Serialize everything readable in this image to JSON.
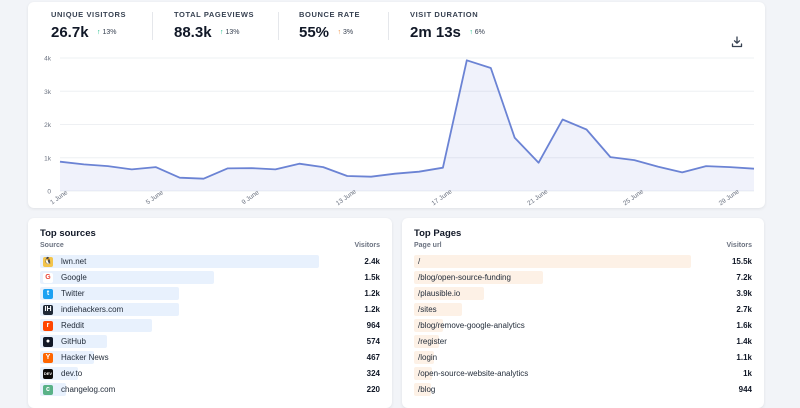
{
  "stats": [
    {
      "label": "UNIQUE VISITORS",
      "value": "26.7k",
      "change": "13%",
      "arrow": "↑",
      "color": "#10b981"
    },
    {
      "label": "TOTAL PAGEVIEWS",
      "value": "88.3k",
      "change": "13%",
      "arrow": "↑",
      "color": "#10b981"
    },
    {
      "label": "BOUNCE RATE",
      "value": "55%",
      "change": "3%",
      "arrow": "↑",
      "color": "#ef8c3b"
    },
    {
      "label": "VISIT DURATION",
      "value": "2m 13s",
      "change": "6%",
      "arrow": "↑",
      "color": "#10b981"
    }
  ],
  "download_icon": "download-icon",
  "chart_data": {
    "type": "line",
    "y_ticks": [
      "0",
      "1k",
      "2k",
      "3k",
      "4k"
    ],
    "ylim": [
      0,
      4000
    ],
    "x_ticks": [
      {
        "label": "1 June",
        "day": 1
      },
      {
        "label": "5 June",
        "day": 5
      },
      {
        "label": "9 June",
        "day": 9
      },
      {
        "label": "13 June",
        "day": 13
      },
      {
        "label": "17 June",
        "day": 17
      },
      {
        "label": "21 June",
        "day": 21
      },
      {
        "label": "25 June",
        "day": 25
      },
      {
        "label": "29 June",
        "day": 29
      }
    ],
    "series": [
      {
        "color": "#6b83d4",
        "x": [
          1,
          2,
          3,
          4,
          5,
          6,
          7,
          8,
          9,
          10,
          11,
          12,
          13,
          14,
          15,
          16,
          17,
          18,
          19,
          20,
          21,
          22,
          23,
          24,
          25,
          26,
          27,
          28,
          29,
          30
        ],
        "values": [
          880,
          800,
          750,
          650,
          720,
          400,
          370,
          680,
          690,
          650,
          820,
          720,
          450,
          430,
          520,
          580,
          700,
          3930,
          3700,
          1600,
          850,
          2150,
          1850,
          1020,
          930,
          730,
          560,
          750,
          720,
          670
        ]
      }
    ],
    "grid": true
  },
  "top_sources": {
    "title": "Top sources",
    "col_left": "Source",
    "col_right": "Visitors",
    "rows": [
      {
        "label": "lwn.net",
        "value": "2.4k",
        "num": 2400,
        "icon": "linux-penguin-icon",
        "icon_bg": "#f3c44b",
        "icon_char": "🐧"
      },
      {
        "label": "Google",
        "value": "1.5k",
        "num": 1500,
        "icon": "google-icon",
        "icon_bg": "#ffffff",
        "icon_char": "G",
        "icon_fg": "#ea4335"
      },
      {
        "label": "Twitter",
        "value": "1.2k",
        "num": 1200,
        "icon": "twitter-icon",
        "icon_bg": "#1da1f2",
        "icon_char": "t"
      },
      {
        "label": "indiehackers.com",
        "value": "1.2k",
        "num": 1200,
        "icon": "indiehackers-icon",
        "icon_bg": "#1f2937",
        "icon_char": "IH"
      },
      {
        "label": "Reddit",
        "value": "964",
        "num": 964,
        "icon": "reddit-icon",
        "icon_bg": "#ff4500",
        "icon_char": "r"
      },
      {
        "label": "GitHub",
        "value": "574",
        "num": 574,
        "icon": "github-icon",
        "icon_bg": "#111827",
        "icon_char": "●"
      },
      {
        "label": "Hacker News",
        "value": "467",
        "num": 467,
        "icon": "hacker-news-icon",
        "icon_bg": "#ff6600",
        "icon_char": "Y"
      },
      {
        "label": "dev.to",
        "value": "324",
        "num": 324,
        "icon": "devto-icon",
        "icon_bg": "#0a0a0a",
        "icon_char": "DEV"
      },
      {
        "label": "changelog.com",
        "value": "220",
        "num": 220,
        "icon": "changelog-icon",
        "icon_bg": "#59b287",
        "icon_char": "c"
      }
    ]
  },
  "top_pages": {
    "title": "Top Pages",
    "col_left": "Page url",
    "col_right": "Visitors",
    "rows": [
      {
        "label": "/",
        "value": "15.5k",
        "num": 15500
      },
      {
        "label": "/blog/open-source-funding",
        "value": "7.2k",
        "num": 7200
      },
      {
        "label": "/plausible.io",
        "value": "3.9k",
        "num": 3900
      },
      {
        "label": "/sites",
        "value": "2.7k",
        "num": 2700
      },
      {
        "label": "/blog/remove-google-analytics",
        "value": "1.6k",
        "num": 1600
      },
      {
        "label": "/register",
        "value": "1.4k",
        "num": 1400
      },
      {
        "label": "/login",
        "value": "1.1k",
        "num": 1100
      },
      {
        "label": "/open-source-website-analytics",
        "value": "1k",
        "num": 1000
      },
      {
        "label": "/blog",
        "value": "944",
        "num": 944
      }
    ]
  }
}
